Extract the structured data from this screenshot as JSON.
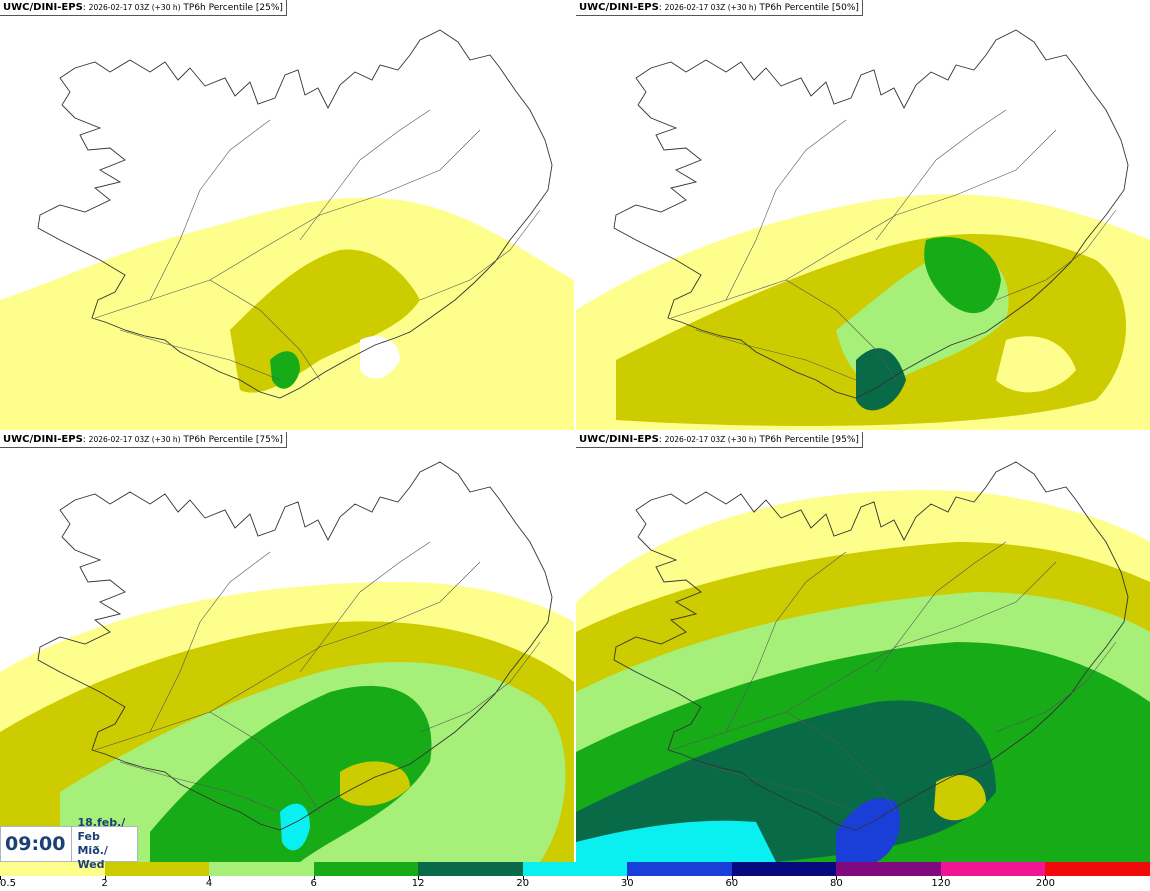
{
  "panels": [
    {
      "model": "UWC/DINI-EPS",
      "run": "2026-02-17 03Z (+30 h)",
      "title": "TP6h Percentile [25%]",
      "level": 1
    },
    {
      "model": "UWC/DINI-EPS",
      "run": "2026-02-17 03Z (+30 h)",
      "title": "TP6h Percentile [50%]",
      "level": 2
    },
    {
      "model": "UWC/DINI-EPS",
      "run": "2026-02-17 03Z (+30 h)",
      "title": "TP6h Percentile [75%]",
      "level": 3
    },
    {
      "model": "UWC/DINI-EPS",
      "run": "2026-02-17 03Z (+30 h)",
      "title": "TP6h Percentile [95%]",
      "level": 4
    }
  ],
  "time_box": {
    "time": "09:00",
    "date_line1": "18.feb./ Feb",
    "date_line2": "Mið./ Wed"
  },
  "legend": {
    "labels": [
      "0.5",
      "2",
      "4",
      "6",
      "12",
      "20",
      "30",
      "60",
      "80",
      "120",
      "200"
    ],
    "colors": [
      "#fefe8c",
      "#cccc00",
      "#a6f07a",
      "#18ab18",
      "#096a48",
      "#0af0f0",
      "#1a3fd8",
      "#09097f",
      "#7f0a7f",
      "#f01595",
      "#f00a0a"
    ]
  },
  "colors": {
    "land_outline": "#333333",
    "background": "#ffffff"
  }
}
